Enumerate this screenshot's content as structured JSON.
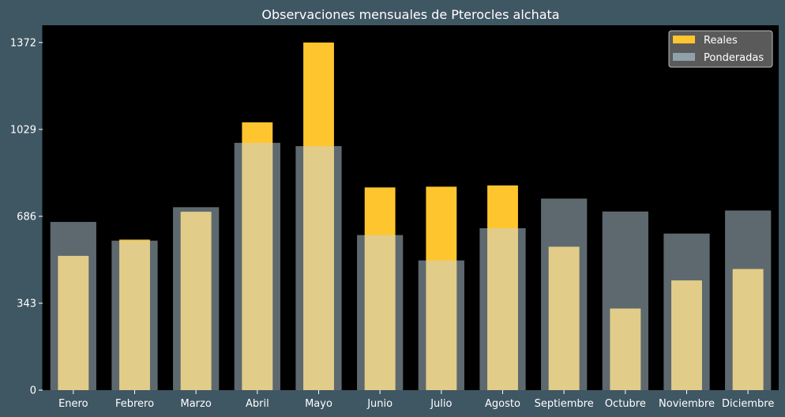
{
  "chart_data": {
    "type": "bar",
    "title": "Observaciones mensuales de Pterocles alchata",
    "xlabel": "",
    "ylabel": "",
    "categories": [
      "Enero",
      "Febrero",
      "Marzo",
      "Abril",
      "Mayo",
      "Junio",
      "Julio",
      "Agosto",
      "Septiembre",
      "Octubre",
      "Noviembre",
      "Diciembre"
    ],
    "series": [
      {
        "name": "Reales",
        "color": "#ffc52e",
        "values": [
          530,
          594,
          704,
          1057,
          1372,
          800,
          803,
          808,
          566,
          322,
          433,
          478
        ]
      },
      {
        "name": "Ponderadas",
        "color": "#c9d1d6",
        "values": [
          664,
          590,
          722,
          976,
          963,
          612,
          512,
          639,
          756,
          705,
          618,
          709
        ]
      }
    ],
    "ylim": [
      0,
      1440
    ],
    "yticks": [
      0,
      343,
      686,
      1029,
      1372
    ],
    "legend": "top-right",
    "grid": false,
    "background": "#3f5663",
    "plot_background": "#000000",
    "text_color": "#ffffff"
  }
}
